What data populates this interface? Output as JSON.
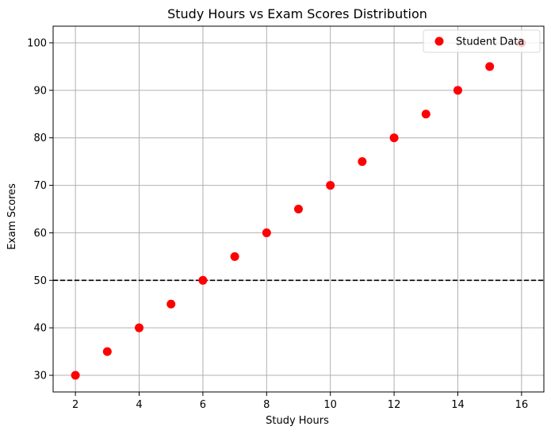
{
  "chart_data": {
    "type": "scatter",
    "title": "Study Hours vs Exam Scores Distribution",
    "xlabel": "Study Hours",
    "ylabel": "Exam Scores",
    "xlim": [
      1.3,
      16.7
    ],
    "ylim": [
      26.5,
      103.5
    ],
    "xticks": [
      2,
      4,
      6,
      8,
      10,
      12,
      14,
      16
    ],
    "yticks": [
      30,
      40,
      50,
      60,
      70,
      80,
      90,
      100
    ],
    "grid": true,
    "legend_position": "top-right",
    "series": [
      {
        "name": "Student Data",
        "color": "#ff0000",
        "x": [
          2,
          3,
          4,
          5,
          6,
          7,
          8,
          9,
          10,
          11,
          12,
          13,
          14,
          15,
          16
        ],
        "y": [
          30,
          35,
          40,
          45,
          50,
          55,
          60,
          65,
          70,
          75,
          80,
          85,
          90,
          95,
          100
        ]
      }
    ],
    "reference_lines": [
      {
        "orientation": "horizontal",
        "y": 50,
        "style": "dashed",
        "color": "#000000"
      }
    ]
  }
}
